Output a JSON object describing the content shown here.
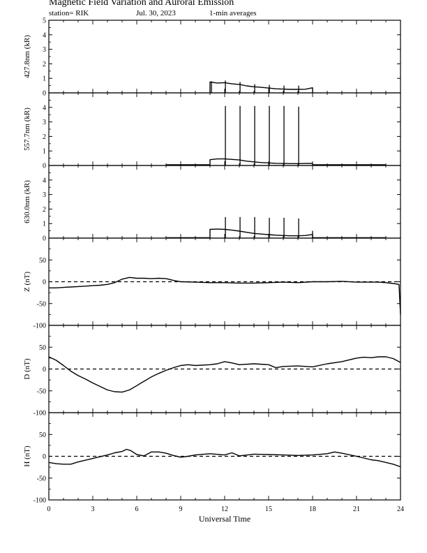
{
  "header": {
    "title": "Magnetic Field Variation and Auroral Emission",
    "station": "station= RIK",
    "date": "Jul. 30, 2023",
    "averaging": "1-min averages"
  },
  "chart_data": [
    {
      "type": "line",
      "ylabel": "427.8nm (kR)",
      "xlim": [
        0,
        24
      ],
      "ylim": [
        0,
        5
      ],
      "yticks": [
        0,
        1,
        2,
        3,
        4,
        5
      ],
      "xticks": [
        0,
        3,
        6,
        9,
        12,
        15,
        18,
        21,
        24
      ],
      "series": [
        {
          "x": [
            11.0,
            11.0,
            11.5,
            12.0,
            12.5,
            13.0,
            13.5,
            14.0,
            14.5,
            15.0,
            15.5,
            16.0,
            16.5,
            17.0,
            17.5,
            18.0,
            18.0
          ],
          "y": [
            0,
            0.75,
            0.68,
            0.7,
            0.62,
            0.58,
            0.48,
            0.42,
            0.38,
            0.33,
            0.28,
            0.26,
            0.24,
            0.24,
            0.25,
            0.35,
            0
          ]
        }
      ],
      "spikes": [
        {
          "x": 11.1,
          "y": 0.8
        },
        {
          "x": 12.05,
          "y": 0.85
        },
        {
          "x": 13.05,
          "y": 0.75
        },
        {
          "x": 14.05,
          "y": 0.6
        },
        {
          "x": 15.05,
          "y": 0.55
        },
        {
          "x": 16.05,
          "y": 0.5
        },
        {
          "x": 17.05,
          "y": 0.5
        }
      ]
    },
    {
      "type": "line",
      "ylabel": "557.7nm (kR)",
      "xlim": [
        0,
        24
      ],
      "ylim": [
        0,
        5
      ],
      "yticks": [
        0,
        1,
        2,
        3,
        4
      ],
      "xticks": [
        0,
        3,
        6,
        9,
        12,
        15,
        18,
        21,
        24
      ],
      "series": [
        {
          "x": [
            8.0,
            11.0,
            11.0,
            11.5,
            12.0,
            12.5,
            13.0,
            13.5,
            14.0,
            14.5,
            15.0,
            15.5,
            16.0,
            16.5,
            17.0,
            17.5,
            18.0,
            18.0,
            23.0
          ],
          "y": [
            0.05,
            0.05,
            0.4,
            0.45,
            0.45,
            0.42,
            0.38,
            0.3,
            0.25,
            0.2,
            0.18,
            0.15,
            0.14,
            0.13,
            0.13,
            0.14,
            0.15,
            0.05,
            0.05
          ]
        }
      ],
      "spikes": [
        {
          "x": 12.05,
          "y": 4.1
        },
        {
          "x": 13.05,
          "y": 4.1
        },
        {
          "x": 14.05,
          "y": 4.1
        },
        {
          "x": 15.05,
          "y": 4.1
        },
        {
          "x": 16.05,
          "y": 4.1
        },
        {
          "x": 17.05,
          "y": 4.05
        }
      ]
    },
    {
      "type": "line",
      "ylabel": "630.0nm (kR)",
      "xlim": [
        0,
        24
      ],
      "ylim": [
        0,
        5
      ],
      "yticks": [
        0,
        1,
        2,
        3,
        4
      ],
      "xticks": [
        0,
        3,
        6,
        9,
        12,
        15,
        18,
        21,
        24
      ],
      "series": [
        {
          "x": [
            8.0,
            11.0,
            11.0,
            11.5,
            12.0,
            12.5,
            13.0,
            13.5,
            14.0,
            14.5,
            15.0,
            15.5,
            16.0,
            16.5,
            17.0,
            17.5,
            18.0,
            18.0,
            23.0
          ],
          "y": [
            0.03,
            0.03,
            0.6,
            0.62,
            0.6,
            0.55,
            0.48,
            0.4,
            0.32,
            0.28,
            0.24,
            0.2,
            0.18,
            0.16,
            0.16,
            0.18,
            0.25,
            0.03,
            0.03
          ]
        }
      ],
      "spikes": [
        {
          "x": 12.05,
          "y": 1.45
        },
        {
          "x": 13.05,
          "y": 1.45
        },
        {
          "x": 14.05,
          "y": 1.45
        },
        {
          "x": 15.05,
          "y": 1.4
        },
        {
          "x": 16.05,
          "y": 1.4
        },
        {
          "x": 17.05,
          "y": 1.35
        },
        {
          "x": 18.0,
          "y": 0.5
        }
      ]
    },
    {
      "type": "line",
      "ylabel": "Z (nT)",
      "xlim": [
        0,
        24
      ],
      "ylim": [
        -100,
        100
      ],
      "yticks": [
        -100,
        -50,
        0,
        50
      ],
      "xticks": [
        0,
        3,
        6,
        9,
        12,
        15,
        18,
        21,
        24
      ],
      "zero_line": true,
      "series": [
        {
          "x": [
            0,
            0.5,
            1,
            1.5,
            2,
            2.5,
            3,
            3.5,
            4,
            4.5,
            5,
            5.5,
            6,
            6.5,
            7,
            7.5,
            8,
            8.5,
            9,
            10,
            11,
            12,
            13,
            14,
            15,
            16,
            17,
            18,
            19,
            20,
            21,
            22,
            22.5,
            23,
            23.5,
            23.9,
            24
          ],
          "y": [
            -14,
            -14,
            -13,
            -12,
            -11,
            -10,
            -9,
            -8,
            -6,
            -2,
            6,
            10,
            8,
            8,
            7,
            8,
            7,
            3,
            0,
            -1,
            -2,
            -2,
            -3,
            -3,
            -2,
            -1,
            -2,
            0,
            0,
            1,
            -1,
            -1,
            -1,
            -2,
            -4,
            -6,
            -75
          ]
        }
      ]
    },
    {
      "type": "line",
      "ylabel": "D (nT)",
      "xlim": [
        0,
        24
      ],
      "ylim": [
        -100,
        100
      ],
      "yticks": [
        -100,
        -50,
        0,
        50
      ],
      "xticks": [
        0,
        3,
        6,
        9,
        12,
        15,
        18,
        21,
        24
      ],
      "zero_line": true,
      "series": [
        {
          "x": [
            0,
            0.5,
            1,
            1.5,
            2,
            2.5,
            3,
            3.5,
            4,
            4.5,
            5,
            5.5,
            6,
            6.5,
            7,
            7.5,
            8,
            8.5,
            9,
            9.5,
            10,
            11,
            11.5,
            12,
            12.5,
            13,
            14,
            15,
            15.5,
            16,
            17,
            18,
            19,
            20,
            21,
            21.5,
            22,
            22.5,
            23,
            23.5,
            24
          ],
          "y": [
            28,
            20,
            8,
            -5,
            -15,
            -23,
            -32,
            -40,
            -48,
            -52,
            -53,
            -48,
            -38,
            -28,
            -18,
            -10,
            -3,
            3,
            8,
            10,
            8,
            10,
            12,
            17,
            14,
            10,
            12,
            10,
            3,
            6,
            7,
            5,
            12,
            17,
            25,
            27,
            26,
            28,
            28,
            24,
            15
          ]
        }
      ]
    },
    {
      "type": "line",
      "ylabel": "H (nT)",
      "xlim": [
        0,
        24
      ],
      "ylim": [
        -100,
        100
      ],
      "yticks": [
        -100,
        -50,
        0,
        50
      ],
      "xticks": [
        0,
        3,
        6,
        9,
        12,
        15,
        18,
        21,
        24
      ],
      "xlabel": "Universal Time",
      "zero_line": true,
      "series": [
        {
          "x": [
            0,
            0.5,
            1,
            1.5,
            2,
            2.5,
            3,
            3.5,
            4,
            4.5,
            5,
            5.3,
            5.6,
            6,
            6.5,
            7,
            7.5,
            8,
            8.5,
            9,
            9.5,
            10,
            11,
            12,
            12.5,
            13,
            14,
            15,
            16,
            17,
            18,
            19,
            19.5,
            20,
            21,
            21.5,
            22,
            22.5,
            23,
            23.5,
            24
          ],
          "y": [
            -14,
            -17,
            -18,
            -18,
            -13,
            -9,
            -5,
            -1,
            3,
            8,
            11,
            16,
            13,
            4,
            1,
            10,
            10,
            7,
            2,
            -2,
            0,
            3,
            6,
            3,
            8,
            1,
            5,
            4,
            3,
            2,
            3,
            6,
            10,
            7,
            0,
            -4,
            -8,
            -10,
            -14,
            -18,
            -24
          ]
        }
      ]
    }
  ]
}
